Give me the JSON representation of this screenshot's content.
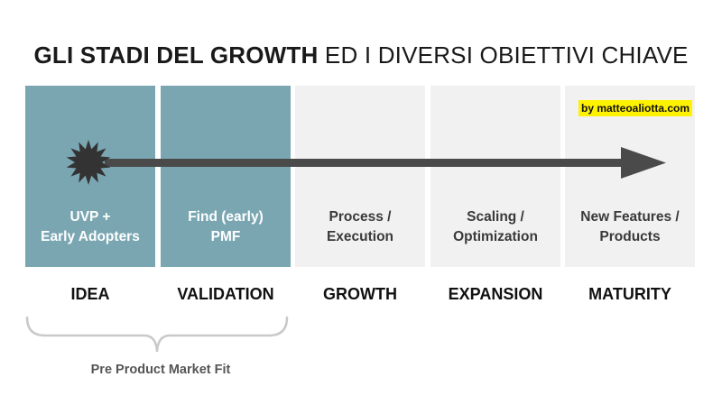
{
  "title": {
    "bold": "GLI STADI DEL GROWTH",
    "light": "ED I DIVERSI OBIETTIVI CHIAVE"
  },
  "credit": "by matteoaliotta.com",
  "stages": [
    {
      "name": "IDEA",
      "line1": "UVP +",
      "line2": "Early Adopters",
      "active": true
    },
    {
      "name": "VALIDATION",
      "line1": "Find (early)",
      "line2": "PMF",
      "active": true
    },
    {
      "name": "GROWTH",
      "line1": "Process /",
      "line2": "Execution",
      "active": false
    },
    {
      "name": "EXPANSION",
      "line1": "Scaling /",
      "line2": "Optimization",
      "active": false
    },
    {
      "name": "MATURITY",
      "line1": "New Features /",
      "line2": "Products",
      "active": false
    }
  ],
  "brace_label": "Pre Product Market Fit",
  "colors": {
    "active_panel": "#7aa6b2",
    "inactive_panel": "#f1f1f1",
    "arrow": "#4a4a4a",
    "credit_highlight": "#fff200"
  },
  "icons": {
    "start_marker": "starburst-icon",
    "arrow_head": "arrow-right-icon"
  }
}
